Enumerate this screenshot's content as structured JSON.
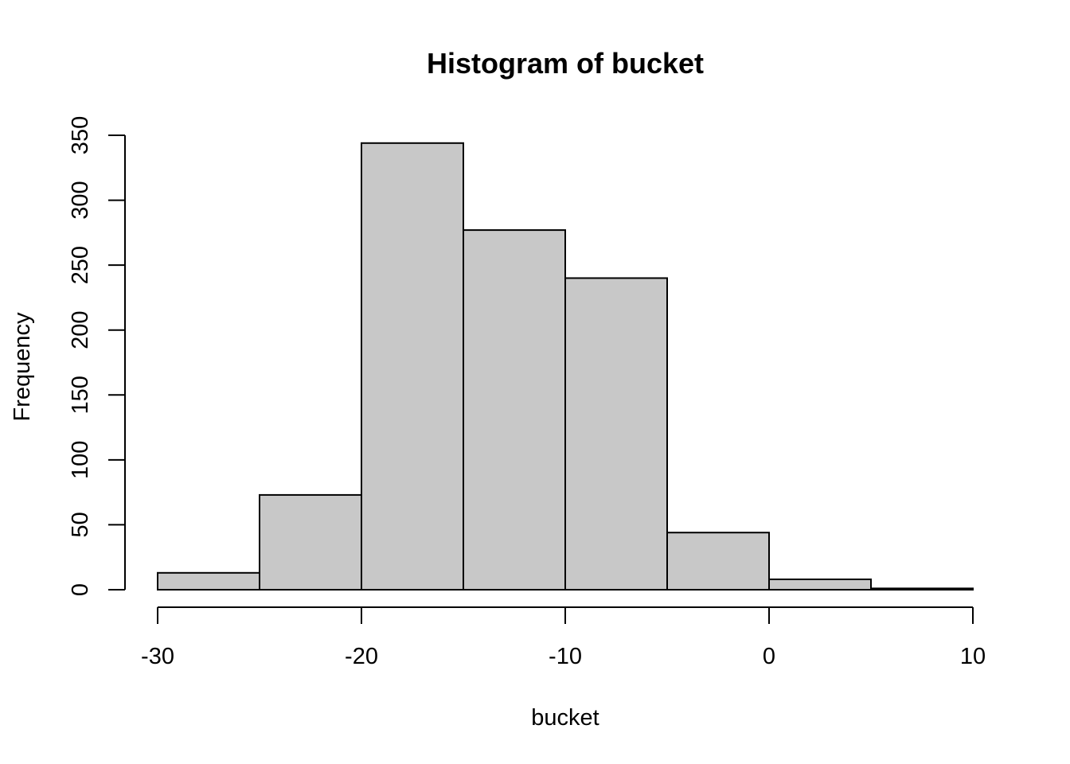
{
  "chart_data": {
    "type": "bar",
    "subtype": "histogram",
    "title": "Histogram of bucket",
    "xlabel": "bucket",
    "ylabel": "Frequency",
    "bins": [
      {
        "x0": -30,
        "x1": -25,
        "count": 13
      },
      {
        "x0": -25,
        "x1": -20,
        "count": 73
      },
      {
        "x0": -20,
        "x1": -15,
        "count": 344
      },
      {
        "x0": -15,
        "x1": -10,
        "count": 277
      },
      {
        "x0": -10,
        "x1": -5,
        "count": 240
      },
      {
        "x0": -5,
        "x1": 0,
        "count": 44
      },
      {
        "x0": 0,
        "x1": 5,
        "count": 8
      },
      {
        "x0": 5,
        "x1": 10,
        "count": 1
      }
    ],
    "xlim": [
      -30,
      10
    ],
    "ylim": [
      0,
      350
    ],
    "xticks": [
      -30,
      -20,
      -10,
      0,
      10
    ],
    "xtick_labels": [
      "-30",
      "-20",
      "-10",
      "0",
      "10"
    ],
    "yticks": [
      0,
      50,
      100,
      150,
      200,
      250,
      300,
      350
    ],
    "ytick_labels": [
      "0",
      "50",
      "100",
      "150",
      "200",
      "250",
      "300",
      "350"
    ],
    "bar_color": "#c8c8c8",
    "edge_color": "#000000",
    "grid": false,
    "legend": "none"
  }
}
